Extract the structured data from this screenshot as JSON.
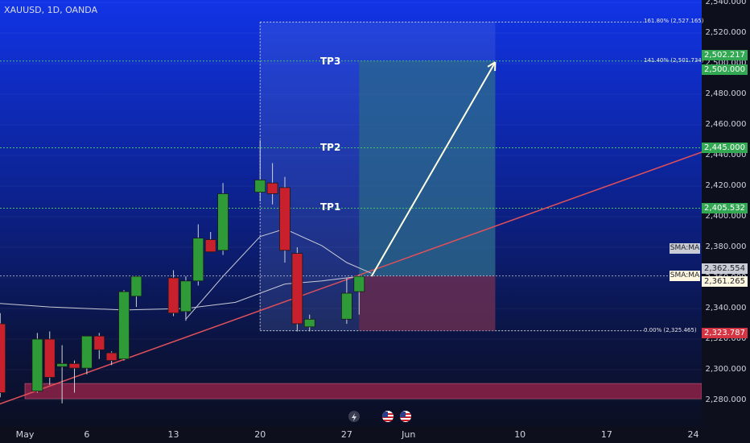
{
  "header": {
    "symbol": "XAUUSD, 1D, OANDA"
  },
  "colors": {
    "up_candle": "#2e9b38",
    "down_candle": "#c8202c",
    "trendline": "#e0505a",
    "sma": "#c8cad6",
    "level_line": "#46c16a",
    "arrow": "#ffffe0",
    "target_zone": "#2a6a88",
    "stop_zone": "#6e2a4a",
    "support_zone": "#7a1f44"
  },
  "chart_data": {
    "type": "candlestick",
    "instrument": "XAUUSD",
    "timeframe": "1D",
    "broker": "OANDA",
    "ylim": [
      2265,
      2540
    ],
    "y_ticks": [
      2280,
      2300,
      2320,
      2340,
      2360,
      2380,
      2400,
      2420,
      2440,
      2460,
      2480,
      2500,
      2520,
      2540
    ],
    "x_ticks": [
      {
        "label": "May",
        "day": 0
      },
      {
        "label": "6",
        "day": 5
      },
      {
        "label": "13",
        "day": 12
      },
      {
        "label": "20",
        "day": 19
      },
      {
        "label": "27",
        "day": 26
      },
      {
        "label": "Jun",
        "day": 31
      },
      {
        "label": "10",
        "day": 40
      },
      {
        "label": "17",
        "day": 47
      },
      {
        "label": "24",
        "day": 54
      }
    ],
    "candles": [
      {
        "day": -2,
        "o": 2330,
        "h": 2337,
        "l": 2282,
        "c": 2285
      },
      {
        "day": 1,
        "o": 2286,
        "h": 2324,
        "l": 2285,
        "c": 2320
      },
      {
        "day": 2,
        "o": 2320,
        "h": 2325,
        "l": 2290,
        "c": 2295
      },
      {
        "day": 3,
        "o": 2302,
        "h": 2316,
        "l": 2278,
        "c": 2304
      },
      {
        "day": 4,
        "o": 2304,
        "h": 2306,
        "l": 2285,
        "c": 2301
      },
      {
        "day": 5,
        "o": 2301,
        "h": 2322,
        "l": 2297,
        "c": 2322
      },
      {
        "day": 6,
        "o": 2322,
        "h": 2324,
        "l": 2307,
        "c": 2313
      },
      {
        "day": 7,
        "o": 2311,
        "h": 2312,
        "l": 2303,
        "c": 2306
      },
      {
        "day": 8,
        "o": 2307,
        "h": 2352,
        "l": 2306,
        "c": 2351
      },
      {
        "day": 9,
        "o": 2348,
        "h": 2360,
        "l": 2341,
        "c": 2361
      },
      {
        "day": 12,
        "o": 2360,
        "h": 2365,
        "l": 2335,
        "c": 2337
      },
      {
        "day": 13,
        "o": 2338,
        "h": 2361,
        "l": 2332,
        "c": 2358
      },
      {
        "day": 14,
        "o": 2358,
        "h": 2395,
        "l": 2355,
        "c": 2386
      },
      {
        "day": 15,
        "o": 2385,
        "h": 2390,
        "l": 2377,
        "c": 2377
      },
      {
        "day": 16,
        "o": 2378,
        "h": 2422,
        "l": 2375,
        "c": 2415
      },
      {
        "day": 19,
        "o": 2416,
        "h": 2450,
        "l": 2410,
        "c": 2424
      },
      {
        "day": 20,
        "o": 2422,
        "h": 2435,
        "l": 2408,
        "c": 2415
      },
      {
        "day": 21,
        "o": 2419,
        "h": 2426,
        "l": 2370,
        "c": 2378
      },
      {
        "day": 22,
        "o": 2376,
        "h": 2380,
        "l": 2325,
        "c": 2330
      },
      {
        "day": 23,
        "o": 2328,
        "h": 2336,
        "l": 2325,
        "c": 2333
      },
      {
        "day": 26,
        "o": 2333,
        "h": 2360,
        "l": 2330,
        "c": 2350
      },
      {
        "day": 27,
        "o": 2351,
        "h": 2362,
        "l": 2336,
        "c": 2361
      }
    ],
    "sma_long": [
      {
        "day": -5,
        "v": 2345
      },
      {
        "day": 2,
        "v": 2341
      },
      {
        "day": 8,
        "v": 2339
      },
      {
        "day": 13,
        "v": 2340
      },
      {
        "day": 17,
        "v": 2344
      },
      {
        "day": 21,
        "v": 2356
      },
      {
        "day": 24,
        "v": 2358
      },
      {
        "day": 27,
        "v": 2361
      }
    ],
    "sma_short": [
      {
        "day": 13,
        "v": 2333
      },
      {
        "day": 16,
        "v": 2361
      },
      {
        "day": 19,
        "v": 2387
      },
      {
        "day": 21,
        "v": 2392
      },
      {
        "day": 24,
        "v": 2381
      },
      {
        "day": 26,
        "v": 2370
      },
      {
        "day": 28,
        "v": 2363
      }
    ],
    "trendline": [
      {
        "day": -5,
        "v": 2269
      },
      {
        "day": 56,
        "v": 2446
      }
    ],
    "levels": [
      {
        "name": "TP3",
        "value": 2501.734
      },
      {
        "name": "TP2",
        "value": 2445.0
      },
      {
        "name": "TP1",
        "value": 2405.532
      },
      {
        "name": "entry",
        "value": 2361.265
      }
    ],
    "fib": {
      "day_start": 19,
      "day_end": 38,
      "low": 2325.465,
      "high": 2527.165,
      "labels": [
        {
          "text": "161.80% (2,527.165)",
          "value": 2527.165
        },
        {
          "text": "141.40% (2,501.734)",
          "value": 2501.734
        },
        {
          "text": "0.00% (2,325.465)",
          "value": 2325.465
        }
      ]
    },
    "position": {
      "day_start": 27,
      "day_end": 38,
      "entry": 2361.265,
      "target": 2501.734,
      "stop": 2325.465
    },
    "support_zone": {
      "low": 2281,
      "high": 2291
    },
    "arrow": {
      "from": {
        "day": 28,
        "v": 2361
      },
      "to": {
        "day": 38,
        "v": 2501
      }
    }
  },
  "price_badges": [
    {
      "key": "b2502",
      "text": "2,502.217",
      "value": 2502.217,
      "bg": "#33a852",
      "fg": "#ffffff"
    },
    {
      "key": "b2500",
      "text": "2,500.000",
      "value": 2500.0,
      "bg": "#33a852",
      "fg": "#ffffff"
    },
    {
      "key": "b2445",
      "text": "2,445.000",
      "value": 2445.0,
      "bg": "#33a852",
      "fg": "#ffffff"
    },
    {
      "key": "b2405",
      "text": "2,405.532",
      "value": 2405.532,
      "bg": "#33a852",
      "fg": "#ffffff"
    },
    {
      "key": "b2362",
      "text": "2,362.554",
      "value": 2362.554,
      "bg": "#c9ccd4",
      "fg": "#20222a"
    },
    {
      "key": "b2361",
      "text": "2,361.265",
      "value": 2361.265,
      "bg": "#fff8e0",
      "fg": "#20222a"
    },
    {
      "key": "b2323",
      "text": "2,323.787",
      "value": 2323.787,
      "bg": "#d53442",
      "fg": "#ffffff"
    }
  ],
  "sma_tags": [
    {
      "text": "SMA:MA",
      "value": 2361.265,
      "bg": "#fff8e0",
      "fg": "#20222a"
    },
    {
      "text": "SMA:MA",
      "value": 2379.0,
      "bg": "#c9ccd4",
      "fg": "#20222a"
    }
  ],
  "tp_labels": {
    "tp3": "TP3",
    "tp2": "TP2",
    "tp1": "TP1"
  },
  "axis_labels": {
    "prices": [
      "2,540.000",
      "2,520.000",
      "2,500.000",
      "2,480.000",
      "2,460.000",
      "2,440.000",
      "2,420.000",
      "2,400.000",
      "2,380.000",
      "2,360.000",
      "2,340.000",
      "2,320.000",
      "2,300.000",
      "2,280.000"
    ],
    "dates": [
      "May",
      "6",
      "13",
      "20",
      "27",
      "Jun",
      "10",
      "17",
      "24"
    ]
  },
  "event_icons": [
    "lightning-icon",
    "us-flag-icon",
    "us-flag-icon"
  ]
}
